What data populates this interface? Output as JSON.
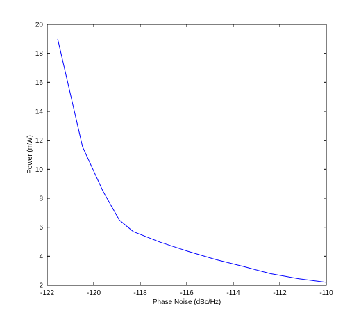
{
  "chart_data": {
    "type": "line",
    "xlabel": "Phase Noise (dBc/Hz)",
    "ylabel": "Power (mW)",
    "x": [
      -121.55,
      -120.48,
      -119.6,
      -118.9,
      -118.3,
      -117.16,
      -115.97,
      -114.78,
      -113.58,
      -112.4,
      -111.2,
      -110
    ],
    "series": [
      {
        "color": "#0000ff",
        "values": [
          19.0,
          11.55,
          8.48,
          6.5,
          5.7,
          4.98,
          4.35,
          3.78,
          3.3,
          2.8,
          2.45,
          2.2
        ]
      }
    ],
    "xlim": [
      -122,
      -110
    ],
    "xticks": [
      -122,
      -120,
      -118,
      -116,
      -114,
      -112,
      -110
    ],
    "ylim": [
      2,
      20
    ],
    "yticks": [
      2,
      4,
      6,
      8,
      10,
      12,
      14,
      16,
      18,
      20
    ]
  }
}
